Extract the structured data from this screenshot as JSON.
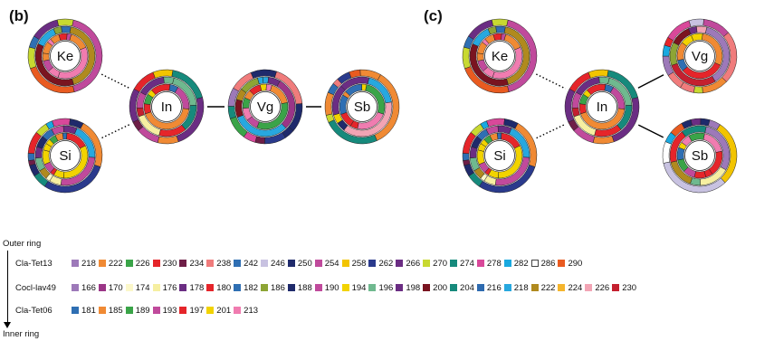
{
  "panels": [
    {
      "label": "(b)",
      "nodes": [
        {
          "id": "Ke",
          "label": "Ke",
          "seed": 3
        },
        {
          "id": "Si",
          "label": "Si",
          "seed": 5
        },
        {
          "id": "In",
          "label": "In",
          "seed": 7
        },
        {
          "id": "Vg",
          "label": "Vg",
          "seed": 11
        },
        {
          "id": "Sb",
          "label": "Sb",
          "seed": 13
        }
      ],
      "edges": [
        {
          "from": "Ke",
          "to": "In",
          "style": "dotted"
        },
        {
          "from": "Si",
          "to": "In",
          "style": "dotted"
        },
        {
          "from": "In",
          "to": "Vg",
          "style": "solid"
        },
        {
          "from": "Vg",
          "to": "Sb",
          "style": "solid"
        }
      ]
    },
    {
      "label": "(c)",
      "nodes": [
        {
          "id": "Ke",
          "label": "Ke",
          "seed": 3
        },
        {
          "id": "Si",
          "label": "Si",
          "seed": 5
        },
        {
          "id": "In",
          "label": "In",
          "seed": 7
        },
        {
          "id": "Vg",
          "label": "Vg",
          "seed": 17
        },
        {
          "id": "Sb",
          "label": "Sb",
          "seed": 19
        }
      ],
      "edges": [
        {
          "from": "Ke",
          "to": "In",
          "style": "dotted"
        },
        {
          "from": "Si",
          "to": "In",
          "style": "dotted"
        },
        {
          "from": "In",
          "to": "Vg",
          "style": "solid"
        },
        {
          "from": "In",
          "to": "Sb",
          "style": "solid"
        }
      ]
    }
  ],
  "legend": {
    "outer_caption": "Outer ring",
    "inner_caption": "Inner ring",
    "loci": [
      {
        "name": "Cla-Tet13",
        "alleles": [
          {
            "label": "218",
            "color": "#9d79b9"
          },
          {
            "label": "222",
            "color": "#f08a34"
          },
          {
            "label": "226",
            "color": "#3aa448"
          },
          {
            "label": "230",
            "color": "#e5252a"
          },
          {
            "label": "234",
            "color": "#6e1e47"
          },
          {
            "label": "238",
            "color": "#f07c7c"
          },
          {
            "label": "242",
            "color": "#2f6fb3"
          },
          {
            "label": "246",
            "color": "#c8c2e1"
          },
          {
            "label": "250",
            "color": "#1f2a6b"
          },
          {
            "label": "254",
            "color": "#c04a9c"
          },
          {
            "label": "258",
            "color": "#f2c400"
          },
          {
            "label": "262",
            "color": "#2a3a8c"
          },
          {
            "label": "266",
            "color": "#6b2d83"
          },
          {
            "label": "270",
            "color": "#c8d931"
          },
          {
            "label": "274",
            "color": "#168a7c"
          },
          {
            "label": "278",
            "color": "#d9489a"
          },
          {
            "label": "282",
            "color": "#19a9e0"
          },
          {
            "label": "286",
            "color": "#ffffff"
          },
          {
            "label": "290",
            "color": "#e95b20"
          }
        ]
      },
      {
        "name": "Cocl-lav49",
        "alleles": [
          {
            "label": "166",
            "color": "#9d79b9"
          },
          {
            "label": "170",
            "color": "#9b3587"
          },
          {
            "label": "174",
            "color": "#fbf7c9"
          },
          {
            "label": "176",
            "color": "#f6efa1"
          },
          {
            "label": "178",
            "color": "#6b2d83"
          },
          {
            "label": "180",
            "color": "#e5252a"
          },
          {
            "label": "182",
            "color": "#2f6fb3"
          },
          {
            "label": "186",
            "color": "#8da535"
          },
          {
            "label": "188",
            "color": "#1f2a6b"
          },
          {
            "label": "190",
            "color": "#c04a9c"
          },
          {
            "label": "194",
            "color": "#f2d300"
          },
          {
            "label": "196",
            "color": "#6fb98f"
          },
          {
            "label": "198",
            "color": "#6b2d83"
          },
          {
            "label": "200",
            "color": "#7a1420"
          },
          {
            "label": "204",
            "color": "#168a7c"
          },
          {
            "label": "216",
            "color": "#2e6bb0"
          },
          {
            "label": "218",
            "color": "#27a8df"
          },
          {
            "label": "222",
            "color": "#b08a1e"
          },
          {
            "label": "224",
            "color": "#f5b52d"
          },
          {
            "label": "226",
            "color": "#f2a4b4"
          },
          {
            "label": "230",
            "color": "#c4202f"
          }
        ]
      },
      {
        "name": "Cla-Tet06",
        "alleles": [
          {
            "label": "181",
            "color": "#2f6fb3"
          },
          {
            "label": "185",
            "color": "#f08a34"
          },
          {
            "label": "189",
            "color": "#3aa448"
          },
          {
            "label": "193",
            "color": "#c04a9c"
          },
          {
            "label": "197",
            "color": "#e5252a"
          },
          {
            "label": "201",
            "color": "#f2d300"
          },
          {
            "label": "213",
            "color": "#f07cb0"
          }
        ]
      }
    ]
  }
}
